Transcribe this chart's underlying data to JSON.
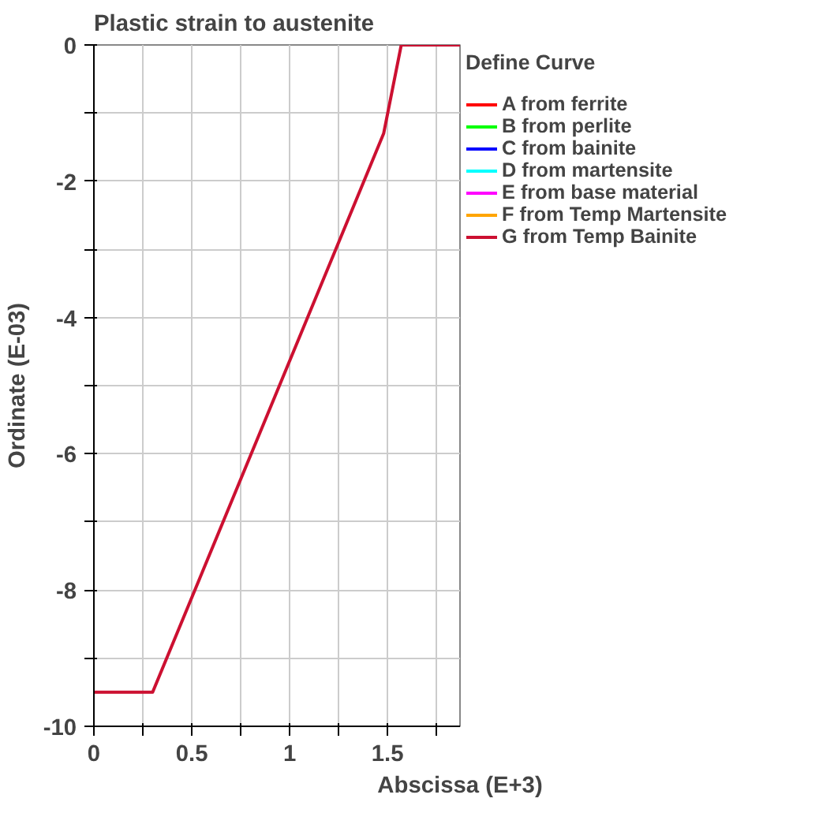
{
  "chart_data": {
    "type": "line",
    "title": "Plastic strain to austenite",
    "xlabel": "Abscissa (E+3)",
    "ylabel": "Ordinate (E-03)",
    "legend_title": "Define Curve",
    "x": [
      0,
      0.3,
      1.48,
      1.57,
      1.87
    ],
    "series": [
      {
        "name": "A from ferrite",
        "color": "#ff0000",
        "values": [
          null,
          null,
          null,
          null,
          null
        ]
      },
      {
        "name": "B from perlite",
        "color": "#00ff00",
        "values": [
          null,
          null,
          null,
          null,
          null
        ]
      },
      {
        "name": "C from bainite",
        "color": "#0000ff",
        "values": [
          null,
          null,
          null,
          null,
          null
        ]
      },
      {
        "name": "D from martensite",
        "color": "#00ffff",
        "values": [
          null,
          null,
          null,
          null,
          null
        ]
      },
      {
        "name": "E from base material",
        "color": "#ff00ff",
        "values": [
          null,
          null,
          null,
          null,
          null
        ]
      },
      {
        "name": "F from Temp Martensite",
        "color": "#ffa500",
        "values": [
          null,
          null,
          null,
          null,
          null
        ]
      },
      {
        "name": "G from Temp Bainite",
        "color": "#cc1031",
        "values": [
          -9.5,
          -9.5,
          -1.3,
          0,
          0
        ]
      }
    ],
    "xlim": [
      0,
      1.87
    ],
    "ylim": [
      -10,
      0
    ],
    "xticks": [
      0,
      {
        "value": 0.25,
        "label": null
      },
      0.5,
      {
        "value": 0.75,
        "label": null
      },
      1,
      {
        "value": 1.25,
        "label": null
      },
      1.5,
      {
        "value": 1.75,
        "label": null
      }
    ],
    "yticks": [
      -10,
      {
        "value": -9,
        "label": null
      },
      -8,
      {
        "value": -7,
        "label": null
      },
      -6,
      {
        "value": -5,
        "label": null
      },
      -4,
      {
        "value": -3,
        "label": null
      },
      -2,
      {
        "value": -1,
        "label": null
      },
      0
    ],
    "grid": true,
    "legend": "right",
    "marker": "none",
    "line_style": "solid"
  }
}
